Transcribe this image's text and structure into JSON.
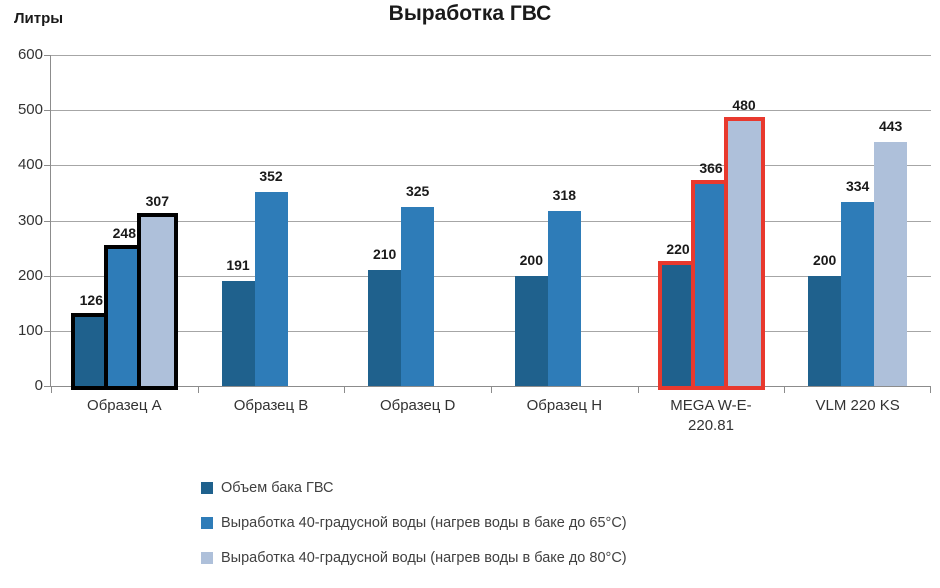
{
  "chart_data": {
    "type": "bar",
    "title": "Выработка ГВС",
    "ylabel": "Литры",
    "ylim": [
      0,
      600
    ],
    "ytick_step": 100,
    "grid": true,
    "value_labels": true,
    "legend_position": "bottom-left",
    "categories": [
      "Образец A",
      "Образец B",
      "Образец D",
      "Образец H",
      "MEGA W-E-220.81",
      "VLM 220 KS"
    ],
    "series": [
      {
        "name": "Объем бака ГВС",
        "color": "#1F618D",
        "values": [
          126,
          191,
          210,
          200,
          220,
          200
        ]
      },
      {
        "name": "Выработка 40-градусной воды (нагрев воды в баке до 65°C)",
        "color": "#2E7CB8",
        "values": [
          248,
          352,
          325,
          318,
          366,
          334
        ]
      },
      {
        "name": "Выработка 40-градусной воды (нагрев воды в баке до 80°C)",
        "color": "#AEC0DA",
        "values": [
          307,
          null,
          null,
          null,
          480,
          443
        ]
      }
    ],
    "highlights": [
      {
        "category_index": 0,
        "outline_color": "#000000"
      },
      {
        "category_index": 4,
        "outline_color": "#E8392E"
      }
    ],
    "axis_colors": {
      "gridline": "#A6A6A6",
      "axis_line": "#8C8C8C",
      "tick_text": "#333333"
    }
  }
}
